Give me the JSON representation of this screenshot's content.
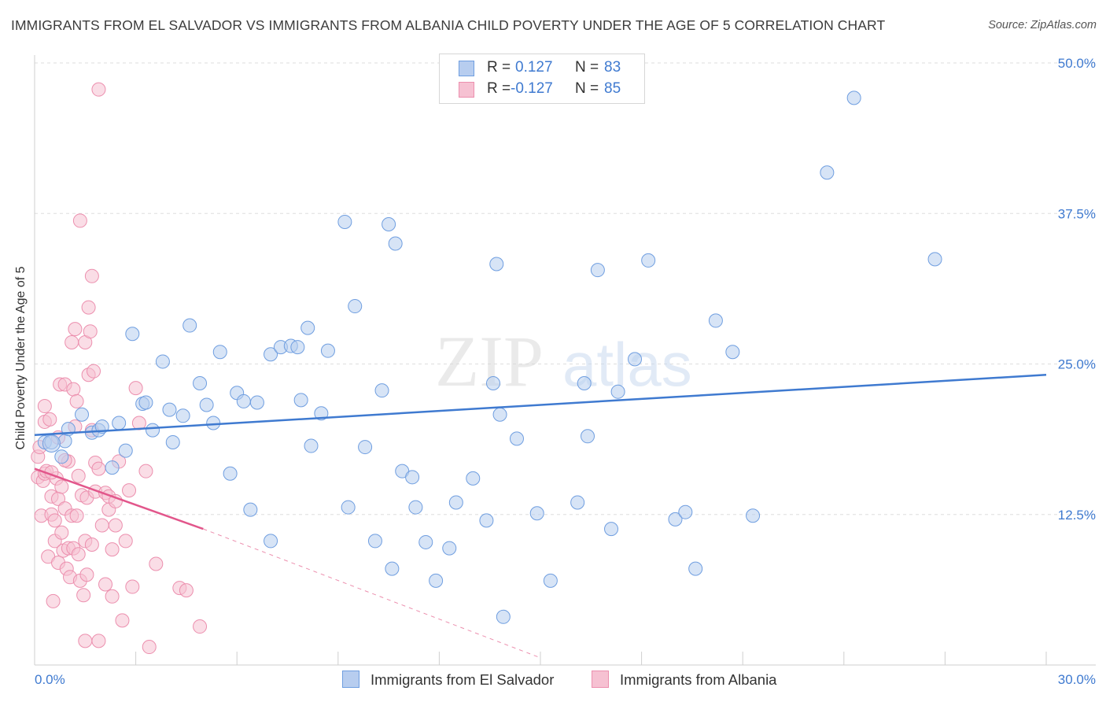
{
  "title": "IMMIGRANTS FROM EL SALVADOR VS IMMIGRANTS FROM ALBANIA CHILD POVERTY UNDER THE AGE OF 5 CORRELATION CHART",
  "source": "Source: ZipAtlas.com",
  "watermark": {
    "zip": "ZIP",
    "atlas": "atlas"
  },
  "legend": {
    "r_label": "R =",
    "n_label": "N =",
    "blue": {
      "r": "0.127",
      "n": "83"
    },
    "pink": {
      "r": "-0.127",
      "n": "85"
    }
  },
  "colors": {
    "blue": "#3f7ad0",
    "blue_fill": "#b7cdef",
    "blue_stroke": "#6f9ee0",
    "pink": "#e2568b",
    "pink_fill": "#f6c1d2",
    "pink_stroke": "#ec8fae",
    "grid": "#dedede",
    "tick_text": "#3f7ad0"
  },
  "chart_data": {
    "type": "scatter",
    "title": "IMMIGRANTS FROM EL SALVADOR VS IMMIGRANTS FROM ALBANIA CHILD POVERTY UNDER THE AGE OF 5 CORRELATION CHART",
    "xlabel": "",
    "ylabel": "Child Poverty Under the Age of 5",
    "xlim": [
      0,
      30
    ],
    "ylim": [
      0,
      50
    ],
    "y_ticks": [
      12.5,
      25.0,
      37.5,
      50.0
    ],
    "y_tick_labels": [
      "12.5%",
      "25.0%",
      "37.5%",
      "50.0%"
    ],
    "x_tick_labels": [
      "0.0%",
      "30.0%"
    ],
    "grid": "horizontal dashed",
    "legend_position": "top-center",
    "series": [
      {
        "name": "Immigrants from El Salvador",
        "color": "#3f7ad0",
        "trend": {
          "x": [
            0,
            30
          ],
          "y": [
            19.1,
            24.1
          ]
        },
        "points": [
          [
            0.3,
            18.5
          ],
          [
            0.5,
            18.5
          ],
          [
            0.8,
            17.3
          ],
          [
            0.9,
            18.6
          ],
          [
            1.0,
            19.6
          ],
          [
            1.4,
            20.8
          ],
          [
            1.7,
            19.3
          ],
          [
            1.9,
            19.5
          ],
          [
            2.0,
            19.8
          ],
          [
            2.3,
            16.4
          ],
          [
            2.5,
            20.1
          ],
          [
            2.7,
            17.8
          ],
          [
            2.9,
            27.5
          ],
          [
            3.2,
            21.7
          ],
          [
            3.3,
            21.8
          ],
          [
            3.5,
            19.5
          ],
          [
            3.8,
            25.2
          ],
          [
            4.0,
            21.2
          ],
          [
            4.1,
            18.5
          ],
          [
            4.4,
            20.7
          ],
          [
            4.6,
            28.2
          ],
          [
            4.9,
            23.4
          ],
          [
            5.1,
            21.6
          ],
          [
            5.3,
            20.1
          ],
          [
            5.5,
            26.0
          ],
          [
            5.8,
            15.9
          ],
          [
            6.0,
            22.6
          ],
          [
            6.2,
            21.9
          ],
          [
            6.4,
            12.9
          ],
          [
            6.6,
            21.8
          ],
          [
            7.0,
            25.8
          ],
          [
            7.0,
            10.3
          ],
          [
            7.3,
            26.4
          ],
          [
            7.6,
            26.5
          ],
          [
            7.8,
            26.4
          ],
          [
            7.9,
            22.0
          ],
          [
            8.1,
            28.0
          ],
          [
            8.2,
            18.2
          ],
          [
            8.5,
            20.9
          ],
          [
            8.7,
            26.1
          ],
          [
            9.2,
            36.8
          ],
          [
            9.3,
            13.1
          ],
          [
            9.5,
            29.8
          ],
          [
            9.8,
            18.1
          ],
          [
            10.1,
            10.3
          ],
          [
            10.3,
            22.8
          ],
          [
            10.5,
            36.6
          ],
          [
            10.6,
            8.0
          ],
          [
            10.7,
            35.0
          ],
          [
            10.9,
            16.1
          ],
          [
            11.2,
            15.6
          ],
          [
            11.3,
            13.1
          ],
          [
            11.6,
            10.2
          ],
          [
            11.9,
            7.0
          ],
          [
            12.3,
            9.7
          ],
          [
            12.5,
            13.5
          ],
          [
            13.0,
            15.5
          ],
          [
            13.4,
            12.0
          ],
          [
            13.6,
            23.4
          ],
          [
            13.7,
            33.3
          ],
          [
            13.8,
            20.8
          ],
          [
            13.9,
            4.0
          ],
          [
            14.3,
            18.8
          ],
          [
            14.9,
            12.6
          ],
          [
            15.3,
            7.0
          ],
          [
            16.1,
            13.5
          ],
          [
            16.3,
            23.4
          ],
          [
            16.4,
            19.0
          ],
          [
            16.7,
            32.8
          ],
          [
            17.1,
            11.3
          ],
          [
            17.3,
            22.7
          ],
          [
            17.8,
            25.4
          ],
          [
            18.2,
            33.6
          ],
          [
            19.0,
            12.1
          ],
          [
            19.3,
            12.7
          ],
          [
            19.6,
            8.0
          ],
          [
            20.2,
            28.6
          ],
          [
            20.7,
            26.0
          ],
          [
            21.3,
            12.4
          ],
          [
            23.5,
            40.9
          ],
          [
            24.3,
            47.1
          ],
          [
            26.7,
            33.7
          ],
          [
            0.5,
            18.4
          ]
        ]
      },
      {
        "name": "Immigrants from Albania",
        "color": "#e2568b",
        "trend": {
          "x": [
            0,
            5.0
          ],
          "y": [
            16.3,
            11.3
          ]
        },
        "trend_dashed": {
          "x": [
            5.0,
            15.0
          ],
          "y": [
            11.3,
            0.6
          ]
        },
        "points": [
          [
            0.1,
            15.6
          ],
          [
            0.1,
            17.3
          ],
          [
            0.15,
            18.1
          ],
          [
            0.2,
            12.4
          ],
          [
            0.25,
            15.3
          ],
          [
            0.3,
            20.2
          ],
          [
            0.3,
            21.5
          ],
          [
            0.3,
            15.9
          ],
          [
            0.35,
            16.1
          ],
          [
            0.4,
            9.0
          ],
          [
            0.45,
            20.4
          ],
          [
            0.5,
            14.0
          ],
          [
            0.5,
            12.5
          ],
          [
            0.55,
            5.3
          ],
          [
            0.6,
            12.0
          ],
          [
            0.6,
            10.3
          ],
          [
            0.65,
            15.5
          ],
          [
            0.7,
            18.9
          ],
          [
            0.7,
            13.8
          ],
          [
            0.7,
            8.5
          ],
          [
            0.75,
            23.3
          ],
          [
            0.8,
            14.8
          ],
          [
            0.8,
            11.0
          ],
          [
            0.85,
            9.5
          ],
          [
            0.9,
            23.3
          ],
          [
            0.9,
            13.0
          ],
          [
            0.95,
            8.0
          ],
          [
            1.0,
            16.9
          ],
          [
            1.0,
            9.7
          ],
          [
            1.05,
            7.3
          ],
          [
            1.1,
            26.8
          ],
          [
            1.1,
            12.4
          ],
          [
            1.15,
            22.9
          ],
          [
            1.15,
            9.7
          ],
          [
            1.2,
            27.9
          ],
          [
            1.2,
            19.8
          ],
          [
            1.25,
            21.9
          ],
          [
            1.25,
            12.4
          ],
          [
            1.3,
            9.2
          ],
          [
            1.35,
            7.0
          ],
          [
            1.35,
            36.9
          ],
          [
            1.4,
            14.1
          ],
          [
            1.45,
            5.8
          ],
          [
            1.5,
            26.8
          ],
          [
            1.5,
            10.3
          ],
          [
            1.55,
            13.9
          ],
          [
            1.55,
            7.5
          ],
          [
            1.6,
            29.7
          ],
          [
            1.6,
            24.1
          ],
          [
            1.65,
            27.7
          ],
          [
            1.7,
            32.3
          ],
          [
            1.7,
            19.5
          ],
          [
            1.7,
            10.0
          ],
          [
            1.75,
            24.4
          ],
          [
            1.8,
            16.8
          ],
          [
            1.8,
            14.4
          ],
          [
            1.9,
            16.3
          ],
          [
            2.0,
            11.6
          ],
          [
            2.1,
            14.3
          ],
          [
            2.1,
            6.7
          ],
          [
            2.2,
            14.0
          ],
          [
            2.2,
            12.9
          ],
          [
            2.3,
            9.6
          ],
          [
            2.3,
            5.7
          ],
          [
            2.4,
            13.6
          ],
          [
            2.5,
            16.9
          ],
          [
            2.6,
            3.7
          ],
          [
            2.7,
            10.3
          ],
          [
            2.8,
            14.5
          ],
          [
            2.9,
            6.5
          ],
          [
            3.0,
            23.0
          ],
          [
            3.1,
            20.1
          ],
          [
            3.3,
            16.1
          ],
          [
            3.4,
            1.5
          ],
          [
            3.6,
            8.4
          ],
          [
            4.3,
            6.4
          ],
          [
            4.5,
            6.2
          ],
          [
            4.9,
            3.2
          ],
          [
            1.5,
            2.0
          ],
          [
            1.9,
            2.0
          ],
          [
            1.9,
            47.8
          ],
          [
            0.5,
            16.0
          ],
          [
            0.9,
            17.0
          ],
          [
            1.3,
            15.7
          ],
          [
            2.4,
            11.6
          ]
        ]
      }
    ]
  },
  "bottom_legend": {
    "blue_label": "Immigrants from El Salvador",
    "pink_label": "Immigrants from Albania"
  }
}
